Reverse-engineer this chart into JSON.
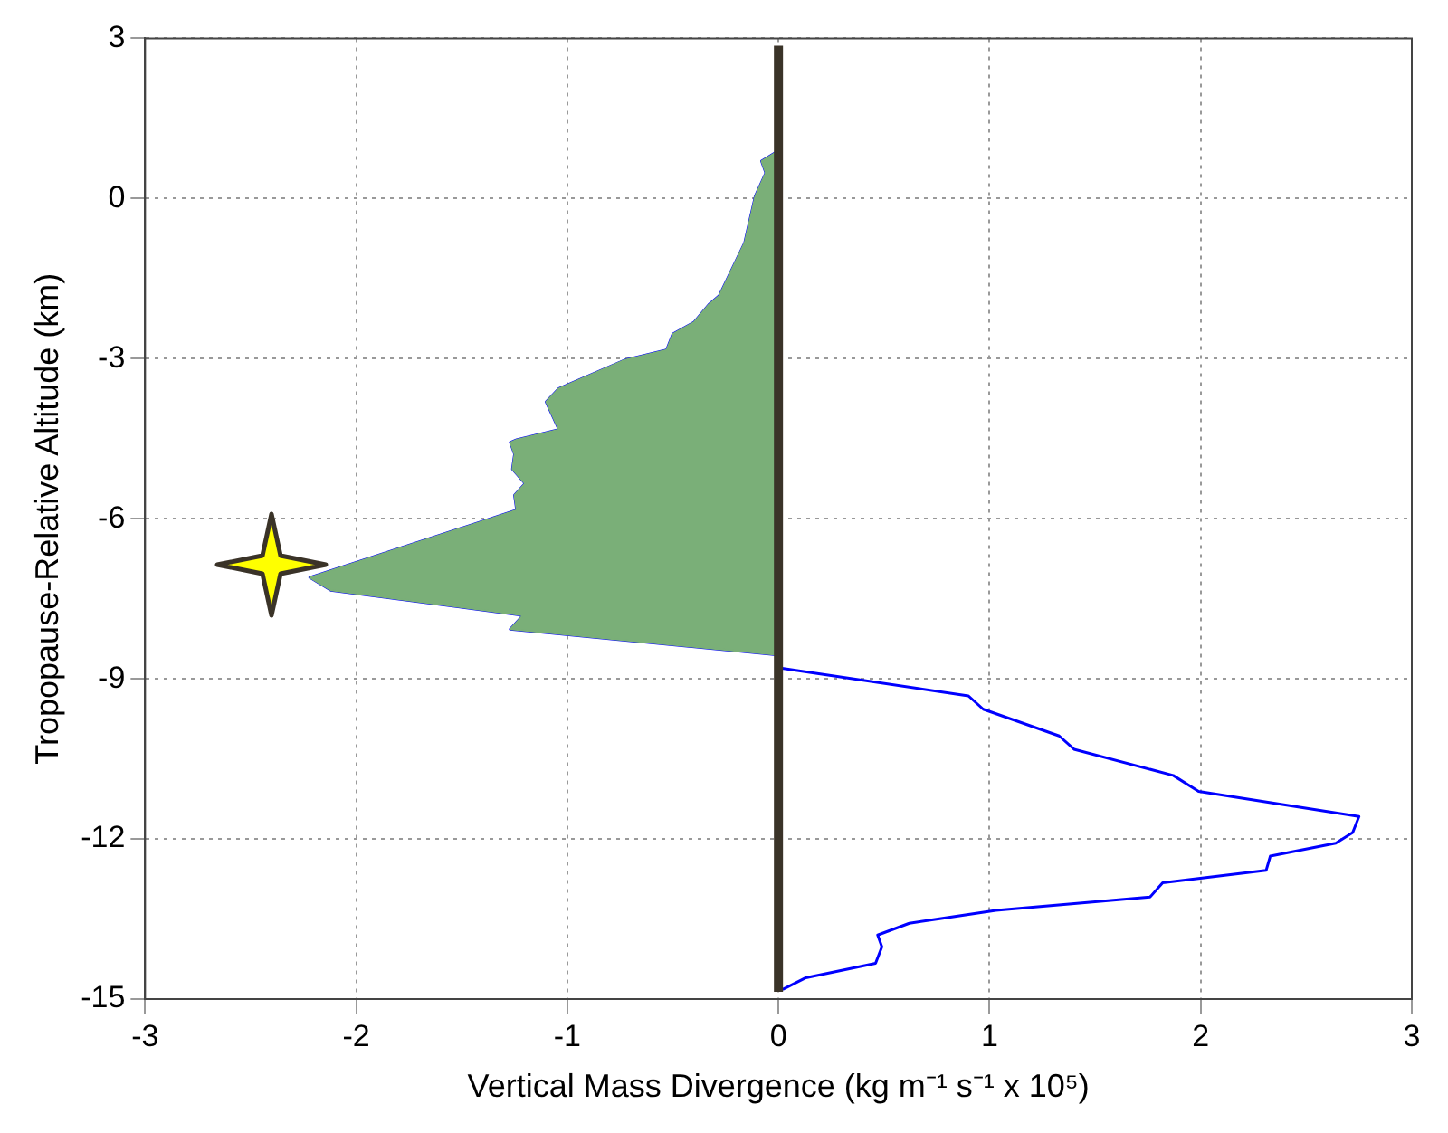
{
  "chart_data": {
    "type": "line",
    "xlabel": "Vertical Mass Divergence (kg m⁻¹ s⁻¹ x 10⁵)",
    "ylabel": "Tropopause-Relative Altitude (km)",
    "xlim": [
      -3,
      3
    ],
    "xticks": [
      -3,
      -2,
      -1,
      0,
      1,
      2,
      3
    ],
    "ylim": [
      -15,
      3
    ],
    "yticks": [
      -15,
      -12,
      -9,
      -6,
      -3,
      0,
      3
    ],
    "grid": true,
    "marker": "none",
    "line_style": "solid",
    "series": [
      {
        "type": "area",
        "color": "#7aaf78",
        "x": [
          0,
          -0.01,
          -0.08,
          -0.06,
          -0.11,
          -0.16,
          -0.28,
          -0.33,
          -0.4,
          -0.5,
          -0.53,
          -0.73,
          -1.04,
          -1.1,
          -1.04,
          -1.24,
          -1.27,
          -1.25,
          -1.26,
          -1.2,
          -1.25,
          -1.24,
          -1.38,
          null,
          null,
          -2.22,
          -2.12,
          -1.21,
          -1.27,
          -0.01,
          0
        ],
        "values": [
          0.87,
          0.87,
          0.7,
          0.48,
          0.04,
          -0.83,
          -1.82,
          -1.99,
          -2.32,
          -2.54,
          -2.84,
          -3.03,
          -3.56,
          -3.81,
          -4.33,
          -4.52,
          -4.57,
          -4.79,
          -5.07,
          -5.34,
          -5.56,
          -5.84,
          -6.02,
          null,
          null,
          -7.1,
          -7.34,
          -7.81,
          -8.07,
          -8.55,
          -8.55
        ]
      },
      {
        "type": "line",
        "color": "#0000ff",
        "x": [
          -0.01,
          -0.08,
          -0.06,
          -0.11,
          -0.16,
          -0.28,
          -0.33,
          -0.4,
          -0.5,
          -0.53,
          -0.73,
          -1.04,
          -1.1,
          -1.04,
          -1.24,
          -1.27,
          -1.25,
          -1.26,
          -1.2,
          -1.25,
          -1.24,
          -1.38,
          null,
          null,
          -2.22,
          -2.12,
          -1.21,
          -1.27,
          -0.01,
          0.01,
          0.9,
          0.97,
          1.33,
          1.4,
          1.87,
          1.99,
          2.75,
          2.72,
          2.64,
          2.33,
          2.31,
          1.82,
          1.76,
          1.03,
          0.62,
          0.47,
          0.49,
          0.46,
          0.13,
          0.02
        ],
        "values": [
          0.87,
          0.7,
          0.48,
          0.04,
          -0.83,
          -1.82,
          -1.99,
          -2.32,
          -2.54,
          -2.84,
          -3.03,
          -3.56,
          -3.81,
          -4.33,
          -4.52,
          -4.57,
          -4.79,
          -5.07,
          -5.34,
          -5.56,
          -5.84,
          -6.02,
          null,
          null,
          -7.1,
          -7.34,
          -7.81,
          -8.07,
          -8.55,
          -8.8,
          -9.32,
          -9.57,
          -10.07,
          -10.32,
          -10.81,
          -11.11,
          -11.58,
          -11.88,
          -12.08,
          -12.32,
          -12.59,
          -12.82,
          -13.09,
          -13.34,
          -13.58,
          -13.8,
          -14.02,
          -14.33,
          -14.6,
          -14.82
        ]
      }
    ],
    "ref_lines": [
      {
        "axis": "x",
        "value": 0,
        "color": "#3a3328"
      }
    ]
  }
}
